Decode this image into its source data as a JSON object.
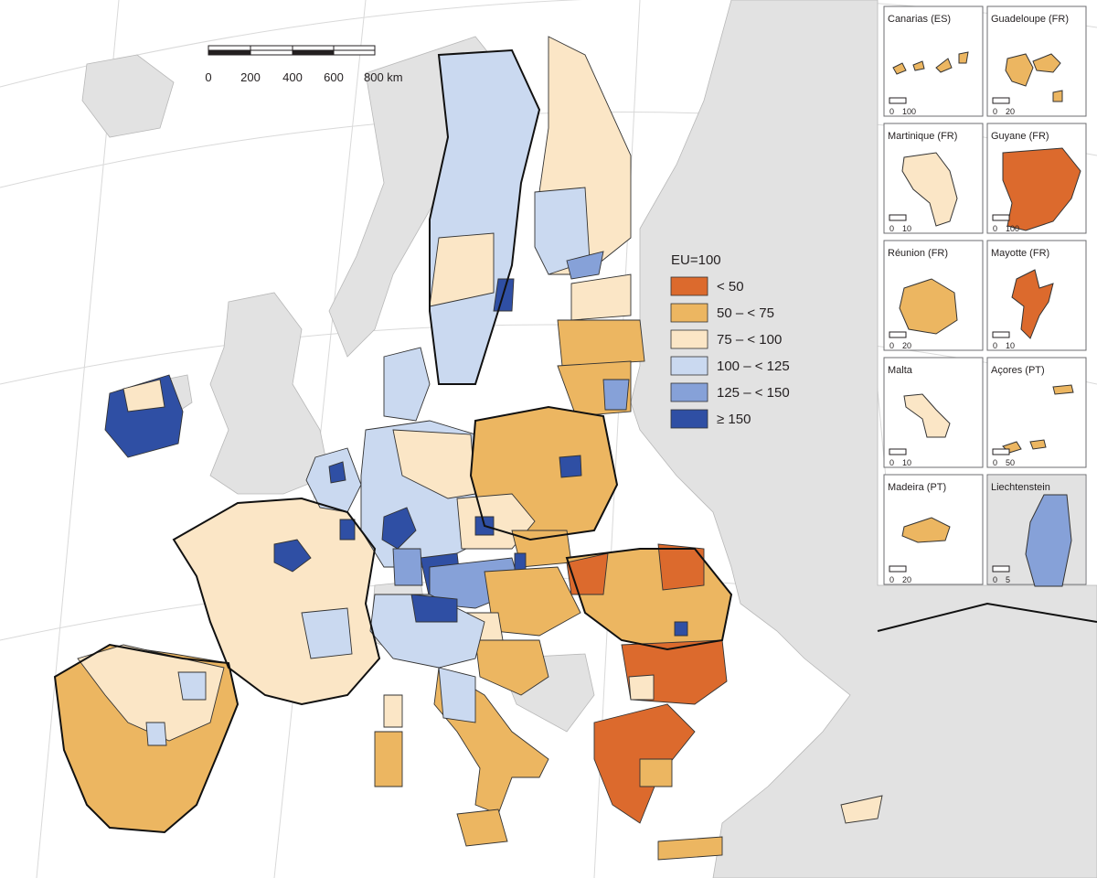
{
  "colors": {
    "sea": "#ffffff",
    "non_eu_land": "#e2e2e2",
    "graticule": "#d9d9d9",
    "border": "#1a1a1a",
    "class_lt50": "#dc6a2d",
    "class_50_75": "#ecb661",
    "class_75_100": "#fbe6c6",
    "class_100_125": "#cad9f0",
    "class_125_150": "#86a1d8",
    "class_ge150": "#2f4fa4"
  },
  "scale_bar": {
    "ticks": [
      "0",
      "200",
      "400",
      "600",
      "800 km"
    ]
  },
  "legend": {
    "title": "EU=100",
    "classes": [
      {
        "label": "< 50",
        "color": "#dc6a2d"
      },
      {
        "label": "50 – < 75",
        "color": "#ecb661"
      },
      {
        "label": "75 – < 100",
        "color": "#fbe6c6"
      },
      {
        "label": "100 – < 125",
        "color": "#cad9f0"
      },
      {
        "label": "125 – < 150",
        "color": "#86a1d8"
      },
      {
        "label": "≥ 150",
        "color": "#2f4fa4"
      }
    ]
  },
  "insets": [
    {
      "title": "Canarias (ES)",
      "scale": [
        "0",
        "100"
      ],
      "class": "class_50_75"
    },
    {
      "title": "Guadeloupe (FR)",
      "scale": [
        "0",
        "20"
      ],
      "class": "class_50_75"
    },
    {
      "title": "Martinique (FR)",
      "scale": [
        "0",
        "10"
      ],
      "class": "class_75_100"
    },
    {
      "title": "Guyane (FR)",
      "scale": [
        "0",
        "100"
      ],
      "class": "class_lt50"
    },
    {
      "title": "Réunion (FR)",
      "scale": [
        "0",
        "20"
      ],
      "class": "class_50_75"
    },
    {
      "title": "Mayotte (FR)",
      "scale": [
        "0",
        "10"
      ],
      "class": "class_lt50"
    },
    {
      "title": "Malta",
      "scale": [
        "0",
        "10"
      ],
      "class": "class_75_100"
    },
    {
      "title": "Açores (PT)",
      "scale": [
        "0",
        "50"
      ],
      "class": "class_50_75"
    },
    {
      "title": "Madeira (PT)",
      "scale": [
        "0",
        "20"
      ],
      "class": "class_50_75"
    },
    {
      "title": "Liechtenstein",
      "scale": [
        "0",
        "5"
      ],
      "class": "class_125_150"
    }
  ]
}
